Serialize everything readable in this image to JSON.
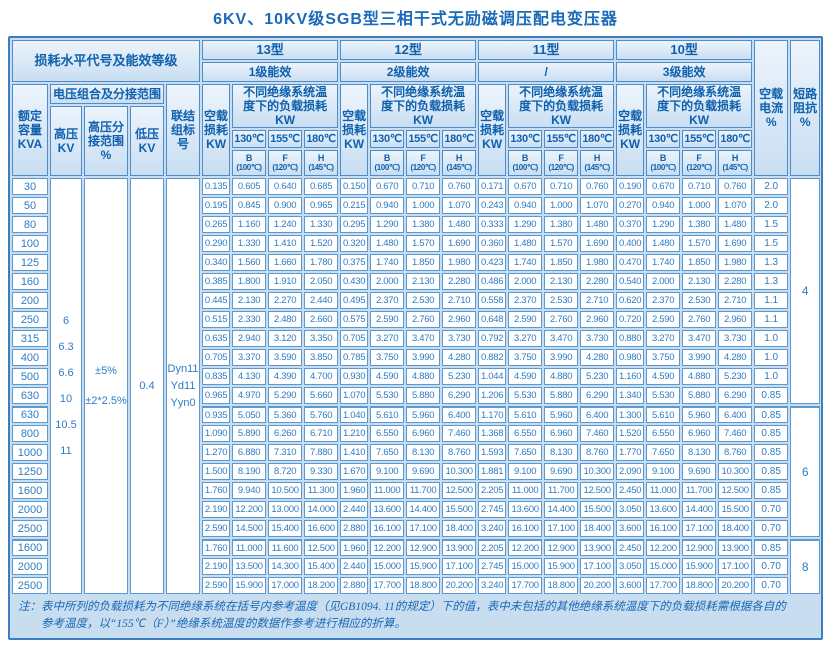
{
  "title": "6KV、10KV级SGB型三相干式无励磁调压配电变压器",
  "header": {
    "corner": "损耗水平代号及能效等级",
    "rated_capacity": "额定\n容量\nKVA",
    "voltage_combo": "电压组合及分接范围",
    "hv": "高压\nKV",
    "hv_tap": "高压分\n接范围\n%",
    "lv": "低压\nKV",
    "vector_group": "联结\n组标\n号",
    "no_load_loss": "空载\n损耗\nKW",
    "load_loss": "不同绝缘系统温\n度下的负载损耗\nKW",
    "idle_current": "空载\n电流\n%",
    "impedance": "短路\n阻抗\n%"
  },
  "models": [
    {
      "name": "13型",
      "grade": "1级能效"
    },
    {
      "name": "12型",
      "grade": "2级能效"
    },
    {
      "name": "11型",
      "grade": "/"
    },
    {
      "name": "10型",
      "grade": "3级能效"
    }
  ],
  "temps": [
    {
      "temp": "130℃",
      "cls": "B",
      "ref": "(100℃)"
    },
    {
      "temp": "155℃",
      "cls": "F",
      "ref": "(120℃)"
    },
    {
      "temp": "180℃",
      "cls": "H",
      "ref": "(145℃)"
    }
  ],
  "left_merged": {
    "hv_values": [
      "6",
      "6.3",
      "6.6",
      "10",
      "10.5",
      "11"
    ],
    "tap_values": [
      "±5%",
      "±2*2.5%"
    ],
    "lv_value": "0.4",
    "vector_values": [
      "Dyn11",
      "Yd11",
      "Yyn0"
    ]
  },
  "rows": [
    {
      "kva": "30",
      "values": [
        "0.135",
        "0.605",
        "0.640",
        "0.685",
        "0.150",
        "0.670",
        "0.710",
        "0.760",
        "0.171",
        "0.670",
        "0.710",
        "0.760",
        "0.190",
        "0.670",
        "0.710",
        "0.760"
      ],
      "idle": "2.0"
    },
    {
      "kva": "50",
      "values": [
        "0.195",
        "0.845",
        "0.900",
        "0.965",
        "0.215",
        "0.940",
        "1.000",
        "1.070",
        "0.243",
        "0.940",
        "1.000",
        "1.070",
        "0.270",
        "0.940",
        "1.000",
        "1.070"
      ],
      "idle": "2.0"
    },
    {
      "kva": "80",
      "values": [
        "0.265",
        "1.160",
        "1.240",
        "1.330",
        "0.295",
        "1.290",
        "1.380",
        "1.480",
        "0.333",
        "1.290",
        "1.380",
        "1.480",
        "0.370",
        "1.290",
        "1.380",
        "1.480"
      ],
      "idle": "1.5"
    },
    {
      "kva": "100",
      "values": [
        "0.290",
        "1.330",
        "1.410",
        "1.520",
        "0.320",
        "1.480",
        "1.570",
        "1.690",
        "0.360",
        "1.480",
        "1.570",
        "1.690",
        "0.400",
        "1.480",
        "1.570",
        "1.690"
      ],
      "idle": "1.5"
    },
    {
      "kva": "125",
      "values": [
        "0.340",
        "1.560",
        "1.660",
        "1.780",
        "0.375",
        "1.740",
        "1.850",
        "1.980",
        "0.423",
        "1.740",
        "1.850",
        "1.980",
        "0.470",
        "1.740",
        "1.850",
        "1.980"
      ],
      "idle": "1.3"
    },
    {
      "kva": "160",
      "values": [
        "0.385",
        "1.800",
        "1.910",
        "2.050",
        "0.430",
        "2.000",
        "2.130",
        "2.280",
        "0.486",
        "2.000",
        "2.130",
        "2.280",
        "0.540",
        "2.000",
        "2.130",
        "2.280"
      ],
      "idle": "1.3"
    },
    {
      "kva": "200",
      "values": [
        "0.445",
        "2.130",
        "2.270",
        "2.440",
        "0.495",
        "2.370",
        "2.530",
        "2.710",
        "0.558",
        "2.370",
        "2.530",
        "2.710",
        "0.620",
        "2.370",
        "2.530",
        "2.710"
      ],
      "idle": "1.1"
    },
    {
      "kva": "250",
      "values": [
        "0.515",
        "2.330",
        "2.480",
        "2.660",
        "0.575",
        "2.590",
        "2.760",
        "2.960",
        "0.648",
        "2.590",
        "2.760",
        "2.960",
        "0.720",
        "2.590",
        "2.760",
        "2.960"
      ],
      "idle": "1.1"
    },
    {
      "kva": "315",
      "values": [
        "0.635",
        "2.940",
        "3.120",
        "3.350",
        "0.705",
        "3.270",
        "3.470",
        "3.730",
        "0.792",
        "3.270",
        "3.470",
        "3.730",
        "0.880",
        "3.270",
        "3.470",
        "3.730"
      ],
      "idle": "1.0"
    },
    {
      "kva": "400",
      "values": [
        "0.705",
        "3.370",
        "3.590",
        "3.850",
        "0.785",
        "3.750",
        "3.990",
        "4.280",
        "0.882",
        "3.750",
        "3.990",
        "4.280",
        "0.980",
        "3.750",
        "3.990",
        "4.280"
      ],
      "idle": "1.0"
    },
    {
      "kva": "500",
      "values": [
        "0.835",
        "4.130",
        "4.390",
        "4.700",
        "0.930",
        "4.590",
        "4.880",
        "5.230",
        "1.044",
        "4.590",
        "4.880",
        "5.230",
        "1.160",
        "4.590",
        "4.880",
        "5.230"
      ],
      "idle": "1.0"
    },
    {
      "kva": "630",
      "values": [
        "0.965",
        "4.970",
        "5.290",
        "5.660",
        "1.070",
        "5.530",
        "5.880",
        "6.290",
        "1.206",
        "5.530",
        "5.880",
        "6.290",
        "1.340",
        "5.530",
        "5.880",
        "6.290"
      ],
      "idle": "0.85"
    },
    {
      "kva": "630",
      "values": [
        "0.935",
        "5.050",
        "5.360",
        "5.760",
        "1.040",
        "5.610",
        "5.960",
        "6.400",
        "1.170",
        "5.610",
        "5.960",
        "6.400",
        "1.300",
        "5.610",
        "5.960",
        "6.400"
      ],
      "idle": "0.85"
    },
    {
      "kva": "800",
      "values": [
        "1.090",
        "5.890",
        "6.260",
        "6.710",
        "1.210",
        "6.550",
        "6.960",
        "7.460",
        "1.368",
        "6.550",
        "6.960",
        "7.460",
        "1.520",
        "6.550",
        "6.960",
        "7.460"
      ],
      "idle": "0.85"
    },
    {
      "kva": "1000",
      "values": [
        "1.270",
        "6.880",
        "7.310",
        "7.880",
        "1.410",
        "7.650",
        "8.130",
        "8.760",
        "1.593",
        "7.650",
        "8.130",
        "8.760",
        "1.770",
        "7.650",
        "8.130",
        "8.760"
      ],
      "idle": "0.85"
    },
    {
      "kva": "1250",
      "values": [
        "1.500",
        "8.190",
        "8.720",
        "9.330",
        "1.670",
        "9.100",
        "9.690",
        "10.300",
        "1.881",
        "9.100",
        "9.690",
        "10.300",
        "2.090",
        "9.100",
        "9.690",
        "10.300"
      ],
      "idle": "0.85"
    },
    {
      "kva": "1600",
      "values": [
        "1.760",
        "9.940",
        "10.500",
        "11.300",
        "1.960",
        "11.000",
        "11.700",
        "12.500",
        "2.205",
        "11.000",
        "11.700",
        "12.500",
        "2.450",
        "11.000",
        "11.700",
        "12.500"
      ],
      "idle": "0.85"
    },
    {
      "kva": "2000",
      "values": [
        "2.190",
        "12.200",
        "13.000",
        "14.000",
        "2.440",
        "13.600",
        "14.400",
        "15.500",
        "2.745",
        "13.600",
        "14.400",
        "15.500",
        "3.050",
        "13.600",
        "14.400",
        "15.500"
      ],
      "idle": "0.70"
    },
    {
      "kva": "2500",
      "values": [
        "2.590",
        "14.500",
        "15.400",
        "16.600",
        "2.880",
        "16.100",
        "17.100",
        "18.400",
        "3.240",
        "16.100",
        "17.100",
        "18.400",
        "3.600",
        "16.100",
        "17.100",
        "18.400"
      ],
      "idle": "0.70"
    },
    {
      "kva": "1600",
      "values": [
        "1.760",
        "11.000",
        "11.600",
        "12.500",
        "1.960",
        "12.200",
        "12.900",
        "13.900",
        "2.205",
        "12.200",
        "12.900",
        "13.900",
        "2.450",
        "12.200",
        "12.900",
        "13.900"
      ],
      "idle": "0.85"
    },
    {
      "kva": "2000",
      "values": [
        "2.190",
        "13.500",
        "14.300",
        "15.400",
        "2.440",
        "15.000",
        "15.900",
        "17.100",
        "2.745",
        "15.000",
        "15.900",
        "17.100",
        "3.050",
        "15.000",
        "15.900",
        "17.100"
      ],
      "idle": "0.70"
    },
    {
      "kva": "2500",
      "values": [
        "2.590",
        "15.900",
        "17.000",
        "18.200",
        "2.880",
        "17.700",
        "18.800",
        "20.200",
        "3.240",
        "17.700",
        "18.800",
        "20.200",
        "3.600",
        "17.700",
        "18.800",
        "20.200"
      ],
      "idle": "0.70"
    }
  ],
  "impedance_groups": [
    {
      "start": 0,
      "span": 12,
      "value": "4"
    },
    {
      "start": 12,
      "span": 7,
      "value": "6"
    },
    {
      "start": 19,
      "span": 3,
      "value": "8"
    }
  ],
  "note": {
    "line1": "注：表中所列的负载损耗为不同绝缘系统在括号内参考温度（见GB1094. 11的规定）下的值，表中未包括的其他绝缘系统温度下的负载损耗需根据各自的",
    "line2": "参考温度，以“155℃（F）”绝缘系统温度的数据作参考进行相应的折算。"
  }
}
